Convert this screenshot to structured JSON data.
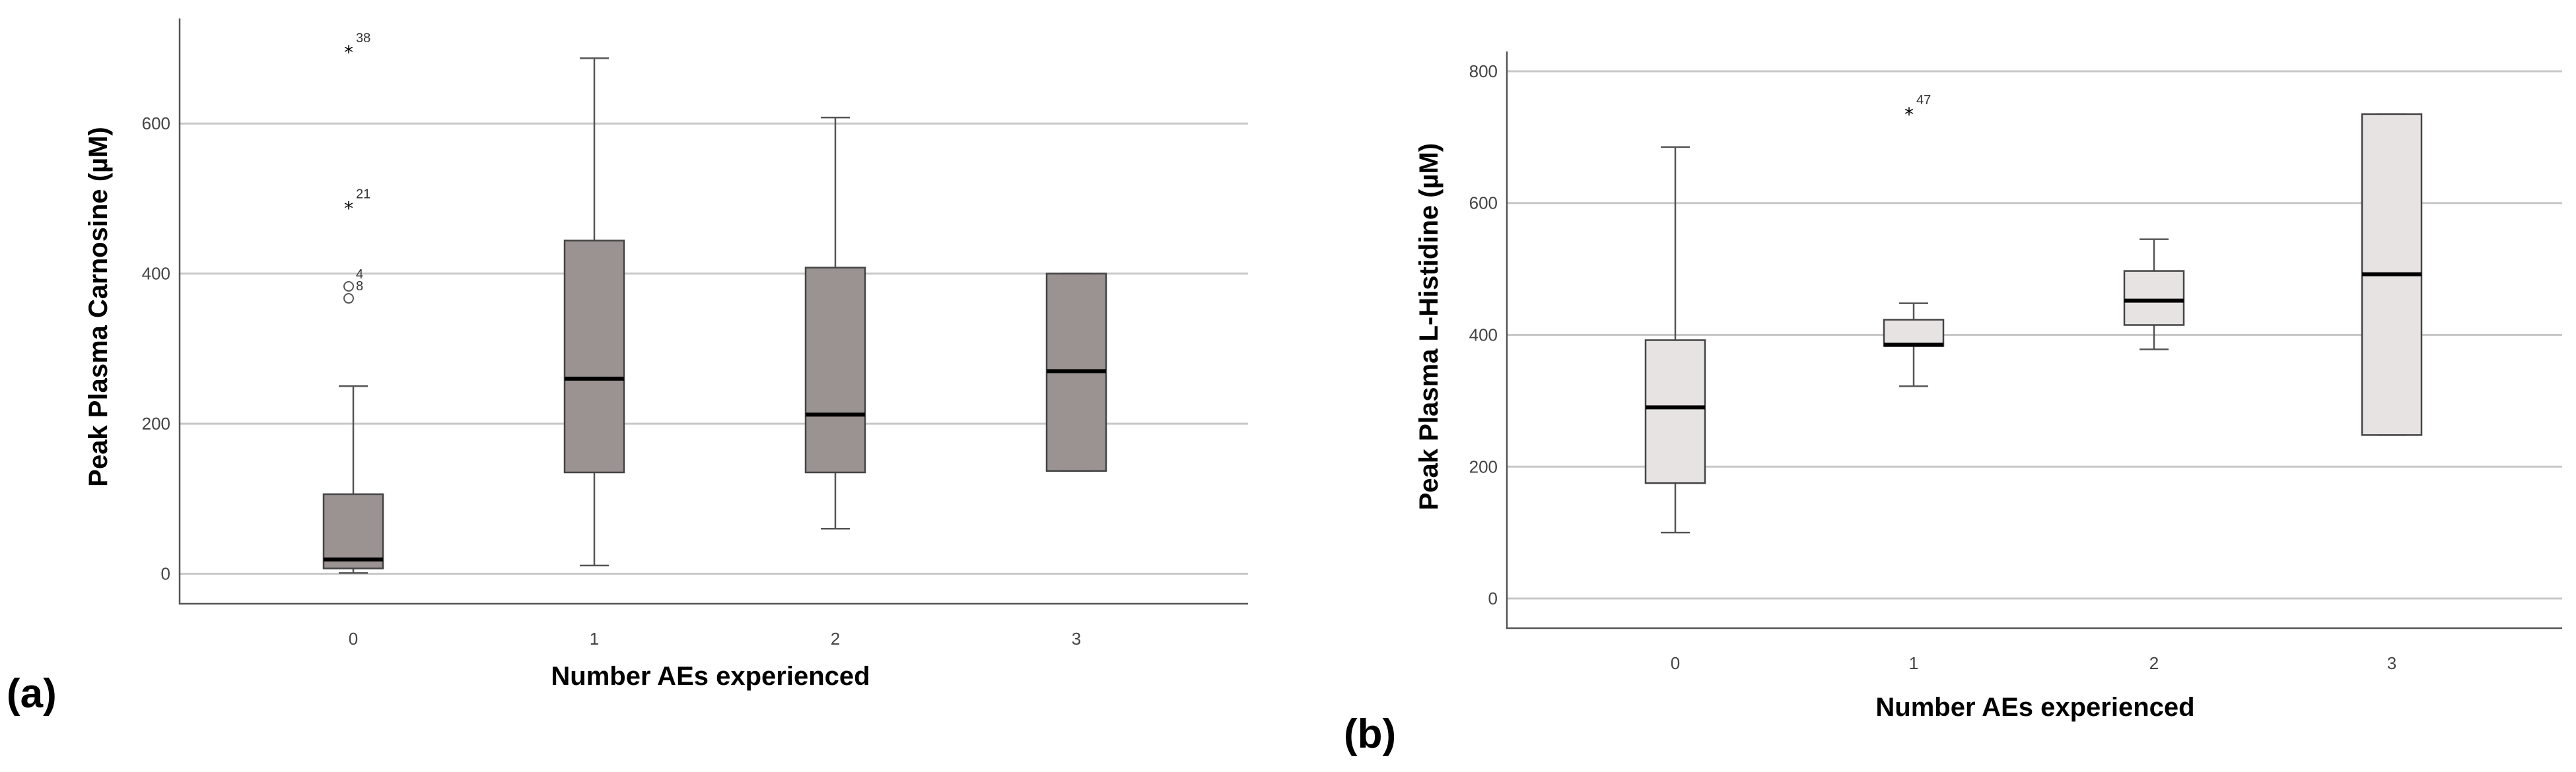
{
  "chart_data": [
    {
      "type": "boxplot",
      "panel_label": "(a)",
      "xlabel": "Number AEs experienced",
      "ylabel": "Peak Plasma Carnosine (µM)",
      "categories": [
        "0",
        "1",
        "2",
        "3"
      ],
      "yticks": [
        0,
        200,
        400,
        600
      ],
      "ylim": [
        -40,
        740
      ],
      "grid": true,
      "box_color": "#9a9391",
      "boxes": [
        {
          "category": "0",
          "whisker_low": 1,
          "q1": 7,
          "median": 19,
          "q3": 106,
          "whisker_high": 250
        },
        {
          "category": "1",
          "whisker_low": 11,
          "q1": 135,
          "median": 260,
          "q3": 444,
          "whisker_high": 687
        },
        {
          "category": "2",
          "whisker_low": 60,
          "q1": 135,
          "median": 212,
          "q3": 408,
          "whisker_high": 608
        },
        {
          "category": "3",
          "whisker_low": 137,
          "q1": 137,
          "median": 270,
          "q3": 400,
          "whisker_high": 400
        }
      ],
      "outliers": [
        {
          "category": "0",
          "value": 698,
          "marker": "star",
          "label": "38"
        },
        {
          "category": "0",
          "value": 490,
          "marker": "star",
          "label": "21"
        },
        {
          "category": "0",
          "value": 383,
          "marker": "circle",
          "label": "4"
        },
        {
          "category": "0",
          "value": 367,
          "marker": "circle",
          "label": "8"
        }
      ]
    },
    {
      "type": "boxplot",
      "panel_label": "(b)",
      "xlabel": "Number AEs experienced",
      "ylabel": "Peak Plasma L-Histidine (µM)",
      "categories": [
        "0",
        "1",
        "2",
        "3"
      ],
      "yticks": [
        0,
        200,
        400,
        600,
        800
      ],
      "ylim": [
        -45,
        830
      ],
      "grid": true,
      "box_color": "#e8e3e3",
      "boxes": [
        {
          "category": "0",
          "whisker_low": 100,
          "q1": 175,
          "median": 290,
          "q3": 392,
          "whisker_high": 685
        },
        {
          "category": "1",
          "whisker_low": 322,
          "q1": 383,
          "median": 385,
          "q3": 423,
          "whisker_high": 448
        },
        {
          "category": "2",
          "whisker_low": 378,
          "q1": 415,
          "median": 452,
          "q3": 497,
          "whisker_high": 545
        },
        {
          "category": "3",
          "whisker_low": 248,
          "q1": 248,
          "median": 492,
          "q3": 735,
          "whisker_high": 735
        }
      ],
      "outliers": [
        {
          "category": "1",
          "value": 738,
          "marker": "star",
          "label": "47"
        }
      ]
    }
  ]
}
